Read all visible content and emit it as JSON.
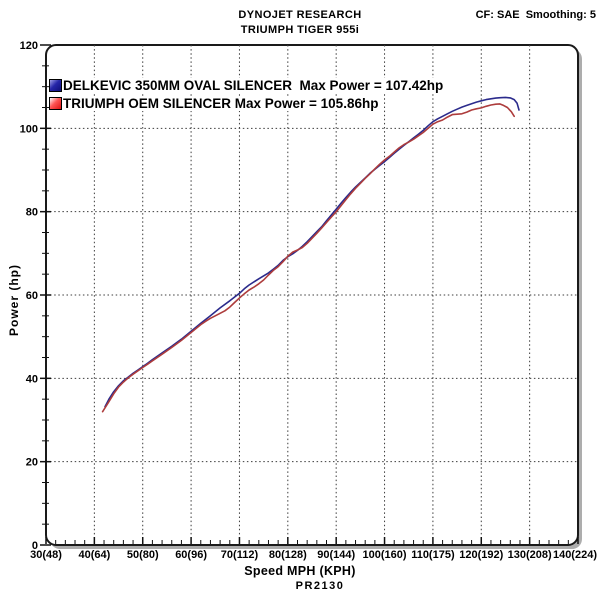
{
  "header": {
    "line1": "DYNOJET RESEARCH",
    "line2": "TRIUMPH TIGER 955i",
    "correction_info": "CF: SAE  Smoothing: 5"
  },
  "footer_code": "PR2130",
  "chart_data": {
    "type": "line",
    "title": "",
    "xlabel": "Speed MPH (KPH)",
    "ylabel": "Power (hp)",
    "xlim": [
      30,
      140
    ],
    "ylim": [
      0,
      120
    ],
    "grid": "dashed at major ticks, both axes",
    "legend_position": "top-left inside plot",
    "x_minor_step": 2,
    "y_minor_step": 5,
    "y_major_ticks": [
      0,
      20,
      40,
      60,
      80,
      100,
      120
    ],
    "x_major_ticks": [
      {
        "value": 30,
        "label": "30(48)"
      },
      {
        "value": 40,
        "label": "40(64)"
      },
      {
        "value": 50,
        "label": "50(80)"
      },
      {
        "value": 60,
        "label": "60(96)"
      },
      {
        "value": 70,
        "label": "70(112)"
      },
      {
        "value": 80,
        "label": "80(128)"
      },
      {
        "value": 90,
        "label": "90(144)"
      },
      {
        "value": 100,
        "label": "100(160)"
      },
      {
        "value": 110,
        "label": "110(175)"
      },
      {
        "value": 120,
        "label": "120(192)"
      },
      {
        "value": 130,
        "label": "130(208)"
      },
      {
        "value": 140,
        "label": "140(224)"
      }
    ],
    "series": [
      {
        "id": "delkevic",
        "name": "DELKEVIC 350MM OVAL SILENCER",
        "legend_label": "DELKEVIC 350MM OVAL SILENCER  Max Power = 107.42hp",
        "max_power_hp": 107.42,
        "color": "#2b2b8c",
        "swatch_gradient": [
          "#a0a0e8",
          "#2525a8",
          "#0d0d78"
        ],
        "points": [
          [
            42.2,
            33.2
          ],
          [
            43,
            35.0
          ],
          [
            44,
            36.8
          ],
          [
            45,
            38.2
          ],
          [
            46,
            39.4
          ],
          [
            47,
            40.3
          ],
          [
            48,
            41.2
          ],
          [
            49,
            42.0
          ],
          [
            50,
            42.8
          ],
          [
            51,
            43.6
          ],
          [
            52,
            44.5
          ],
          [
            54,
            46.1
          ],
          [
            56,
            47.7
          ],
          [
            58,
            49.4
          ],
          [
            60,
            51.3
          ],
          [
            62,
            53.2
          ],
          [
            64,
            55.0
          ],
          [
            66,
            56.9
          ],
          [
            68,
            58.6
          ],
          [
            70,
            60.4
          ],
          [
            71,
            61.5
          ],
          [
            72,
            62.4
          ],
          [
            74,
            63.9
          ],
          [
            76,
            65.3
          ],
          [
            77,
            66.2
          ],
          [
            78,
            67.1
          ],
          [
            79,
            68.3
          ],
          [
            80,
            69.2
          ],
          [
            81,
            69.9
          ],
          [
            82,
            70.7
          ],
          [
            83,
            71.7
          ],
          [
            84,
            72.8
          ],
          [
            85,
            74.0
          ],
          [
            86,
            75.2
          ],
          [
            87,
            76.4
          ],
          [
            88,
            77.8
          ],
          [
            89,
            79.2
          ],
          [
            90,
            80.6
          ],
          [
            91,
            82.0
          ],
          [
            92,
            83.4
          ],
          [
            93,
            84.7
          ],
          [
            94,
            85.9
          ],
          [
            95,
            87.0
          ],
          [
            96,
            88.1
          ],
          [
            97,
            89.2
          ],
          [
            98,
            90.2
          ],
          [
            99,
            91.1
          ],
          [
            100,
            92.0
          ],
          [
            101,
            93.0
          ],
          [
            102,
            94.0
          ],
          [
            103,
            95.0
          ],
          [
            104,
            95.9
          ],
          [
            105,
            96.8
          ],
          [
            106,
            97.7
          ],
          [
            107,
            98.6
          ],
          [
            108,
            99.5
          ],
          [
            109,
            100.6
          ],
          [
            110,
            101.6
          ],
          [
            111,
            102.3
          ],
          [
            112,
            102.9
          ],
          [
            113,
            103.5
          ],
          [
            114,
            104.1
          ],
          [
            115,
            104.6
          ],
          [
            116,
            105.1
          ],
          [
            117,
            105.5
          ],
          [
            118,
            105.9
          ],
          [
            119,
            106.3
          ],
          [
            120,
            106.6
          ],
          [
            121,
            106.9
          ],
          [
            122,
            107.1
          ],
          [
            123,
            107.25
          ],
          [
            124,
            107.35
          ],
          [
            125,
            107.42
          ],
          [
            126,
            107.3
          ],
          [
            126.8,
            106.9
          ],
          [
            127.4,
            106.0
          ],
          [
            127.8,
            104.4
          ]
        ]
      },
      {
        "id": "oem",
        "name": "TRIUMPH OEM SILENCER",
        "legend_label": "TRIUMPH OEM SILENCER Max Power = 105.86hp",
        "max_power_hp": 105.86,
        "color": "#ad3c3c",
        "swatch_gradient": [
          "#ffffff",
          "#ff5555",
          "#dd1111"
        ],
        "points": [
          [
            41.7,
            32.0
          ],
          [
            43,
            34.4
          ],
          [
            44,
            36.3
          ],
          [
            45,
            37.9
          ],
          [
            46,
            39.1
          ],
          [
            47,
            40.1
          ],
          [
            48,
            41.0
          ],
          [
            49,
            41.8
          ],
          [
            50,
            42.6
          ],
          [
            51,
            43.4
          ],
          [
            52,
            44.2
          ],
          [
            54,
            45.8
          ],
          [
            56,
            47.4
          ],
          [
            58,
            49.1
          ],
          [
            60,
            51.0
          ],
          [
            62,
            52.9
          ],
          [
            63,
            53.7
          ],
          [
            64,
            54.4
          ],
          [
            65,
            55.0
          ],
          [
            66,
            55.6
          ],
          [
            67,
            56.2
          ],
          [
            68,
            57.1
          ],
          [
            69,
            58.2
          ],
          [
            70,
            59.3
          ],
          [
            71,
            60.3
          ],
          [
            72,
            61.2
          ],
          [
            73,
            61.9
          ],
          [
            74,
            62.7
          ],
          [
            75,
            63.6
          ],
          [
            76,
            64.8
          ],
          [
            77,
            65.9
          ],
          [
            78,
            66.8
          ],
          [
            79,
            68.0
          ],
          [
            80,
            69.3
          ],
          [
            81,
            70.3
          ],
          [
            82,
            70.8
          ],
          [
            83,
            71.4
          ],
          [
            84,
            72.4
          ],
          [
            85,
            73.6
          ],
          [
            86,
            74.8
          ],
          [
            87,
            76.1
          ],
          [
            88,
            77.4
          ],
          [
            89,
            78.7
          ],
          [
            90,
            80.0
          ],
          [
            91,
            81.4
          ],
          [
            92,
            82.9
          ],
          [
            93,
            84.3
          ],
          [
            94,
            85.6
          ],
          [
            95,
            86.8
          ],
          [
            96,
            88.0
          ],
          [
            97,
            89.1
          ],
          [
            98,
            90.3
          ],
          [
            99,
            91.4
          ],
          [
            100,
            92.4
          ],
          [
            101,
            93.3
          ],
          [
            102,
            94.3
          ],
          [
            103,
            95.3
          ],
          [
            104,
            96.1
          ],
          [
            105,
            96.7
          ],
          [
            106,
            97.4
          ],
          [
            107,
            98.2
          ],
          [
            108,
            99.0
          ],
          [
            109,
            100.0
          ],
          [
            110,
            101.0
          ],
          [
            111,
            101.6
          ],
          [
            112,
            102.0
          ],
          [
            113,
            102.7
          ],
          [
            114,
            103.3
          ],
          [
            115,
            103.4
          ],
          [
            116,
            103.5
          ],
          [
            117,
            103.9
          ],
          [
            118,
            104.4
          ],
          [
            119,
            104.7
          ],
          [
            120,
            104.9
          ],
          [
            121,
            105.3
          ],
          [
            122,
            105.6
          ],
          [
            123,
            105.8
          ],
          [
            123.8,
            105.86
          ],
          [
            124.6,
            105.5
          ],
          [
            125.4,
            105.0
          ],
          [
            126.2,
            104.0
          ],
          [
            126.8,
            102.9
          ]
        ]
      }
    ]
  }
}
